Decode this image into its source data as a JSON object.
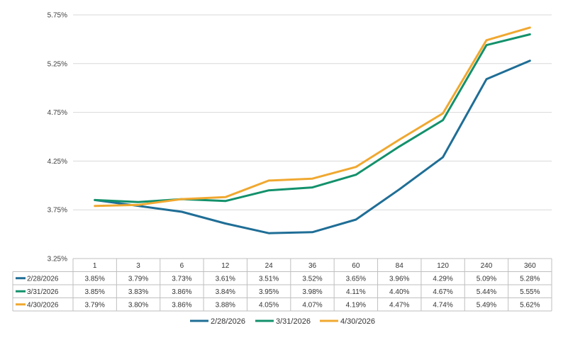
{
  "chart_data": {
    "type": "line",
    "x": [
      "1",
      "3",
      "6",
      "12",
      "24",
      "36",
      "60",
      "84",
      "120",
      "240",
      "360"
    ],
    "ylim": [
      3.25,
      5.75
    ],
    "yticks": [
      "3.25%",
      "3.75%",
      "4.25%",
      "4.75%",
      "5.25%",
      "5.75%"
    ],
    "grid": true,
    "legend": "bottom",
    "series": [
      {
        "name": "2/28/2026",
        "color": "#1f6e96",
        "values": [
          3.85,
          3.79,
          3.73,
          3.61,
          3.51,
          3.52,
          3.65,
          3.96,
          4.29,
          5.09,
          5.28
        ],
        "labels": [
          "3.85%",
          "3.79%",
          "3.73%",
          "3.61%",
          "3.51%",
          "3.52%",
          "3.65%",
          "3.96%",
          "4.29%",
          "5.09%",
          "5.28%"
        ]
      },
      {
        "name": "3/31/2026",
        "color": "#13916b",
        "values": [
          3.85,
          3.83,
          3.86,
          3.84,
          3.95,
          3.98,
          4.11,
          4.4,
          4.67,
          5.44,
          5.55
        ],
        "labels": [
          "3.85%",
          "3.83%",
          "3.86%",
          "3.84%",
          "3.95%",
          "3.98%",
          "4.11%",
          "4.40%",
          "4.67%",
          "5.44%",
          "5.55%"
        ]
      },
      {
        "name": "4/30/2026",
        "color": "#f0a830",
        "values": [
          3.79,
          3.8,
          3.86,
          3.88,
          4.05,
          4.07,
          4.19,
          4.47,
          4.74,
          5.49,
          5.62
        ],
        "labels": [
          "3.79%",
          "3.80%",
          "3.86%",
          "3.88%",
          "4.05%",
          "4.07%",
          "4.19%",
          "4.47%",
          "4.74%",
          "5.49%",
          "5.62%"
        ]
      }
    ]
  }
}
